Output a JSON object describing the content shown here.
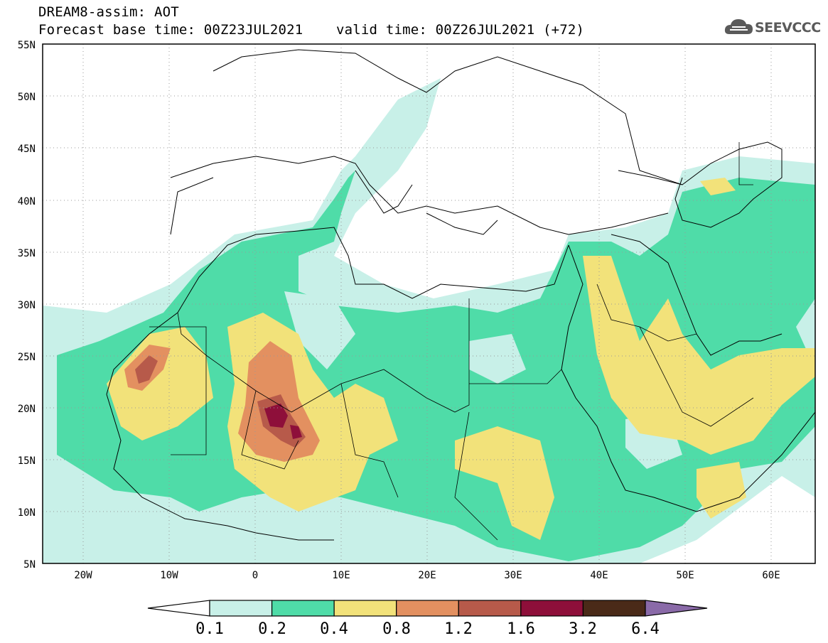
{
  "header": {
    "title_line1": "DREAM8-assim: AOT",
    "title_line2": "Forecast base time: 00Z23JUL2021    valid time: 00Z26JUL2021 (+72)",
    "logo_text": "SEEVCCC"
  },
  "map": {
    "lon_range": [
      -25,
      65
    ],
    "lat_range": [
      5,
      55
    ],
    "lon_ticks": [
      "20W",
      "10W",
      "0",
      "10E",
      "20E",
      "30E",
      "40E",
      "50E",
      "60E"
    ],
    "lat_ticks": [
      "55N",
      "50N",
      "45N",
      "40N",
      "35N",
      "30N",
      "25N",
      "20N",
      "15N",
      "10N",
      "5N"
    ],
    "gridlines": true
  },
  "colorbar": {
    "labels": [
      "0.1",
      "0.2",
      "0.4",
      "0.8",
      "1.2",
      "1.6",
      "3.2",
      "6.4"
    ],
    "colors": [
      "#c8f0e8",
      "#4fdca8",
      "#f2e27a",
      "#e39060",
      "#b75a4a",
      "#8e0f3a",
      "#4a2a18",
      "#8a6aa8"
    ],
    "under_color": "#ffffff"
  },
  "icons": {
    "logo": "cloud-logo-icon"
  }
}
